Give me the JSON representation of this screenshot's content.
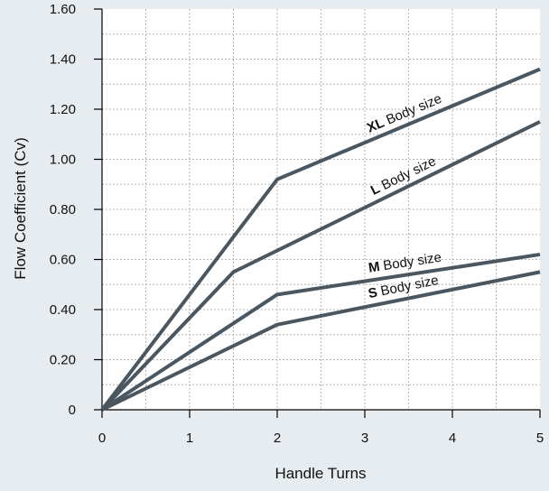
{
  "chart_data": {
    "type": "line",
    "title": "",
    "xlabel": "Handle Turns",
    "ylabel": "Flow Coefficient (Cv)",
    "xlim": [
      0,
      5
    ],
    "ylim": [
      0,
      1.6
    ],
    "x_ticks": [
      "0",
      "1",
      "2",
      "3",
      "4",
      "5"
    ],
    "y_ticks": [
      "0",
      "0.20",
      "0.40",
      "0.60",
      "0.80",
      "1.00",
      "1.20",
      "1.40",
      "1.60"
    ],
    "grid": true,
    "legend": "none",
    "line_color": "#4a5660",
    "series": [
      {
        "name": "XL Body size",
        "name_bold": "XL",
        "name_rest": "Body size",
        "x": [
          0,
          2,
          5
        ],
        "y": [
          0,
          0.92,
          1.36
        ]
      },
      {
        "name": "L Body size",
        "name_bold": "L",
        "name_rest": "Body size",
        "x": [
          0,
          1.5,
          5
        ],
        "y": [
          0,
          0.55,
          1.15
        ]
      },
      {
        "name": "M Body size",
        "name_bold": "M",
        "name_rest": "Body size",
        "x": [
          0,
          2,
          5
        ],
        "y": [
          0,
          0.46,
          0.62
        ]
      },
      {
        "name": "S Body size",
        "name_bold": "S",
        "name_rest": "Body size",
        "x": [
          0,
          2,
          5
        ],
        "y": [
          0,
          0.34,
          0.55
        ]
      }
    ]
  }
}
